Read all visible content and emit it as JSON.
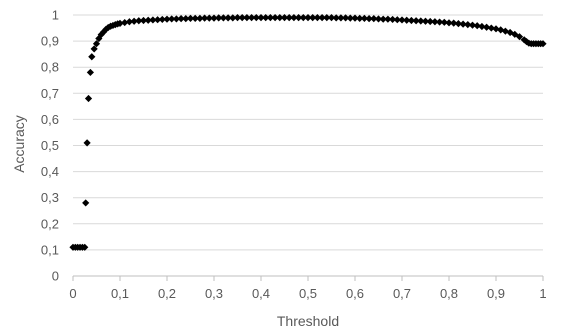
{
  "chart_data": {
    "type": "scatter",
    "title": "",
    "xlabel": "Threshold",
    "ylabel": "Accuracy",
    "xlim": [
      0,
      1
    ],
    "ylim": [
      0,
      1
    ],
    "grid": "horizontal",
    "marker": "diamond",
    "x_ticks": [
      "0",
      "0,1",
      "0,2",
      "0,3",
      "0,4",
      "0,5",
      "0,6",
      "0,7",
      "0,8",
      "0,9",
      "1"
    ],
    "y_ticks": [
      "0",
      "0,1",
      "0,2",
      "0,3",
      "0,4",
      "0,5",
      "0,6",
      "0,7",
      "0,8",
      "0,9",
      "1"
    ],
    "colors": {
      "marker": "#000000",
      "grid": "#d9d9d9",
      "text": "#595959"
    },
    "series": [
      {
        "x": [
          0.0,
          0.005,
          0.01,
          0.015,
          0.02,
          0.025,
          0.027,
          0.03,
          0.033,
          0.037,
          0.04,
          0.045,
          0.05,
          0.055,
          0.06,
          0.065,
          0.07,
          0.075,
          0.08,
          0.085,
          0.09,
          0.095,
          0.1,
          0.11,
          0.12,
          0.13,
          0.14,
          0.15,
          0.16,
          0.17,
          0.18,
          0.19,
          0.2,
          0.21,
          0.22,
          0.23,
          0.24,
          0.25,
          0.26,
          0.27,
          0.28,
          0.29,
          0.3,
          0.31,
          0.32,
          0.33,
          0.34,
          0.35,
          0.36,
          0.37,
          0.38,
          0.39,
          0.4,
          0.41,
          0.42,
          0.43,
          0.44,
          0.45,
          0.46,
          0.47,
          0.48,
          0.49,
          0.5,
          0.51,
          0.52,
          0.53,
          0.54,
          0.55,
          0.56,
          0.57,
          0.58,
          0.59,
          0.6,
          0.61,
          0.62,
          0.63,
          0.64,
          0.65,
          0.66,
          0.67,
          0.68,
          0.69,
          0.7,
          0.71,
          0.72,
          0.73,
          0.74,
          0.75,
          0.76,
          0.77,
          0.78,
          0.79,
          0.8,
          0.81,
          0.82,
          0.83,
          0.84,
          0.85,
          0.86,
          0.87,
          0.88,
          0.89,
          0.9,
          0.91,
          0.92,
          0.93,
          0.94,
          0.95,
          0.96,
          0.965,
          0.97,
          0.975,
          0.98,
          0.985,
          0.99,
          0.995,
          1.0
        ],
        "y": [
          0.11,
          0.11,
          0.11,
          0.11,
          0.11,
          0.11,
          0.28,
          0.51,
          0.68,
          0.78,
          0.84,
          0.87,
          0.89,
          0.91,
          0.925,
          0.935,
          0.945,
          0.952,
          0.957,
          0.96,
          0.963,
          0.966,
          0.968,
          0.971,
          0.974,
          0.976,
          0.978,
          0.979,
          0.98,
          0.981,
          0.982,
          0.983,
          0.984,
          0.985,
          0.985,
          0.986,
          0.986,
          0.987,
          0.987,
          0.987,
          0.988,
          0.988,
          0.988,
          0.989,
          0.989,
          0.989,
          0.989,
          0.99,
          0.99,
          0.99,
          0.99,
          0.99,
          0.99,
          0.99,
          0.99,
          0.99,
          0.99,
          0.99,
          0.99,
          0.99,
          0.99,
          0.99,
          0.99,
          0.99,
          0.99,
          0.99,
          0.99,
          0.99,
          0.989,
          0.989,
          0.989,
          0.988,
          0.988,
          0.987,
          0.987,
          0.986,
          0.986,
          0.985,
          0.984,
          0.984,
          0.983,
          0.982,
          0.981,
          0.98,
          0.979,
          0.978,
          0.977,
          0.976,
          0.975,
          0.974,
          0.973,
          0.972,
          0.97,
          0.969,
          0.967,
          0.965,
          0.963,
          0.961,
          0.959,
          0.956,
          0.953,
          0.95,
          0.947,
          0.943,
          0.938,
          0.933,
          0.926,
          0.917,
          0.905,
          0.898,
          0.892,
          0.89,
          0.89,
          0.89,
          0.89,
          0.89,
          0.89
        ]
      }
    ]
  }
}
